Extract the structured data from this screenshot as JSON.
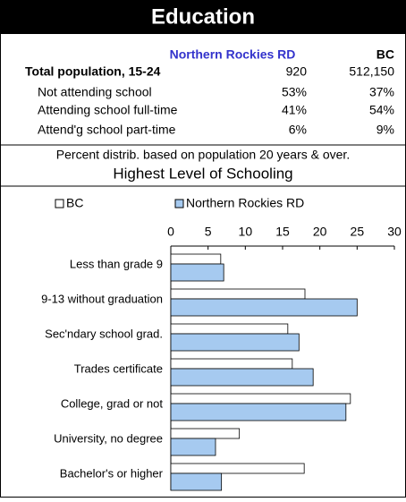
{
  "header": {
    "title": "Education"
  },
  "table": {
    "columns": [
      "Northern Rockies RD",
      "BC"
    ],
    "rows": [
      {
        "label": "Total population, 15-24",
        "values": [
          "920",
          "512,150"
        ]
      },
      {
        "label": "Not attending school",
        "values": [
          "53%",
          "37%"
        ]
      },
      {
        "label": "Attending school full-time",
        "values": [
          "41%",
          "54%"
        ]
      },
      {
        "label": "Attend'g school part-time",
        "values": [
          "6%",
          "9%"
        ]
      }
    ]
  },
  "note": "Percent distrib. based on population 20 years & over.",
  "chart_data": {
    "type": "bar",
    "orientation": "horizontal",
    "title": "Highest Level of Schooling",
    "categories": [
      "Less than grade 9",
      "9-13 without graduation",
      "Sec'ndary school grad.",
      "Trades certificate",
      "College, grad or not",
      "University, no degree",
      "Bachelor's or higher"
    ],
    "series": [
      {
        "name": "BC",
        "color": "#ffffff",
        "values": [
          6.7,
          18.0,
          15.7,
          16.3,
          24.1,
          9.2,
          17.9
        ]
      },
      {
        "name": "Northern Rockies RD",
        "color": "#a6caf0",
        "values": [
          7.1,
          25.0,
          17.2,
          19.1,
          23.5,
          6.0,
          6.8
        ]
      }
    ],
    "xlim": [
      0,
      30
    ],
    "xticks": [
      0,
      5,
      10,
      15,
      20,
      25,
      30
    ]
  }
}
